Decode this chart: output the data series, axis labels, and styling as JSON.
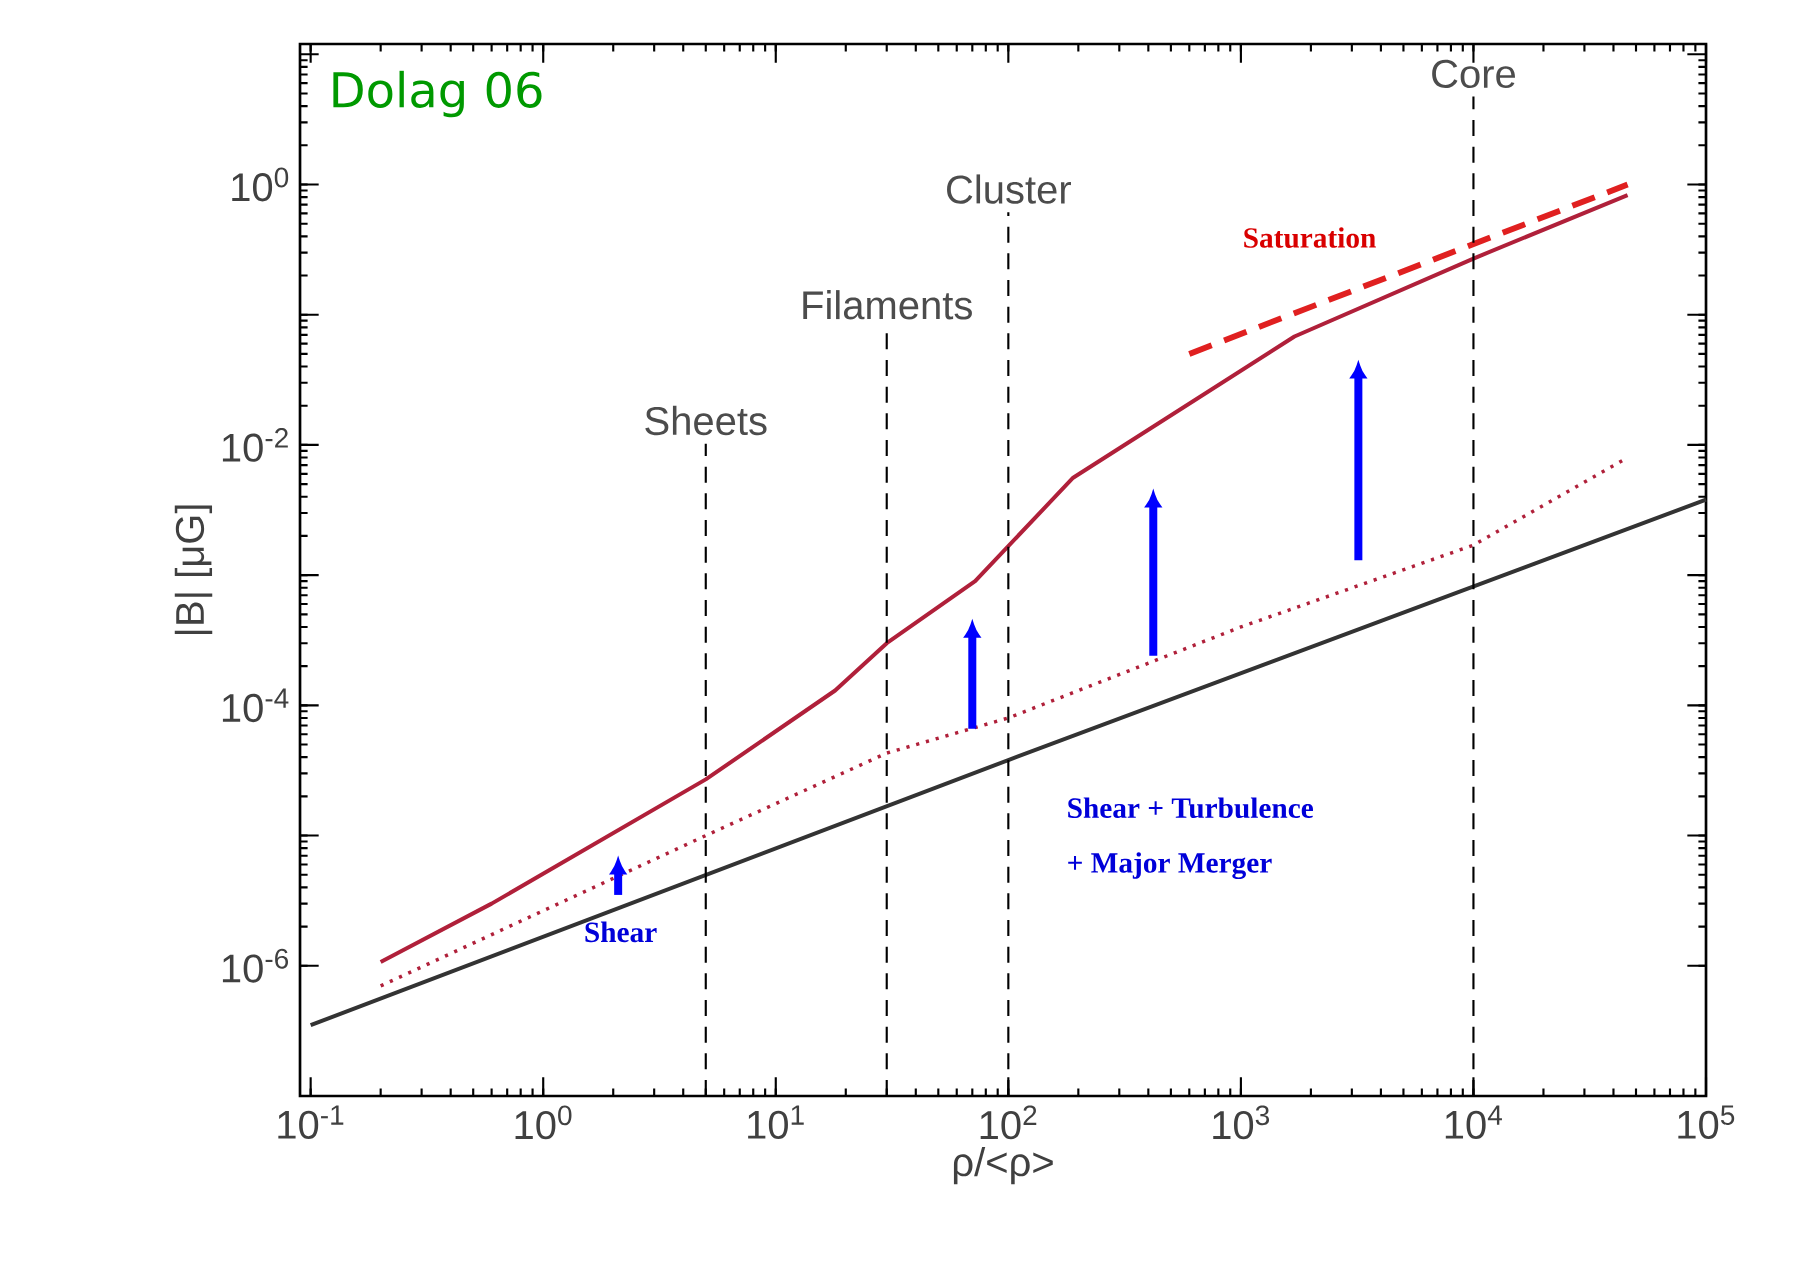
{
  "chart_data": {
    "type": "line",
    "xlabel": "ρ/<ρ>",
    "ylabel": "|B|  [μG]",
    "log": "xy",
    "xlim": [
      0.09,
      100000
    ],
    "ylim": [
      1e-07,
      12
    ],
    "xticks": [
      {
        "value": 0.1,
        "label": "10$^{-1}$"
      },
      {
        "value": 1,
        "label": "10$^{0}$"
      },
      {
        "value": 10,
        "label": "10$^{1}$"
      },
      {
        "value": 100,
        "label": "10$^{2}$"
      },
      {
        "value": 1000,
        "label": "10$^{3}$"
      },
      {
        "value": 10000,
        "label": "10$^{4}$"
      },
      {
        "value": 100000,
        "label": "10$^{5}$"
      }
    ],
    "yticks": [
      {
        "value": 1e-06,
        "label": "10$^{-6}$"
      },
      {
        "value": 1e-05,
        "label": null
      },
      {
        "value": 0.0001,
        "label": "10$^{-4}$"
      },
      {
        "value": 0.001,
        "label": null
      },
      {
        "value": 0.01,
        "label": "10$^{-2}$"
      },
      {
        "value": 0.1,
        "label": null
      },
      {
        "value": 1,
        "label": "10$^{0}$"
      },
      {
        "value": 10,
        "label": null
      }
    ],
    "series": [
      {
        "color": "#333333",
        "line_style": "solid",
        "x": [
          0.1,
          100,
          100000
        ],
        "values": [
          3.5e-07,
          3.8e-05,
          0.0038
        ]
      },
      {
        "color": "#b0203a",
        "line_style": "dotted",
        "x": [
          0.2,
          5,
          30,
          100,
          1000,
          10000,
          46000
        ],
        "values": [
          7e-07,
          1e-05,
          4.3e-05,
          8e-05,
          0.0004,
          0.0017,
          0.008
        ]
      },
      {
        "color": "#b0203a",
        "line_style": "solid",
        "x": [
          0.2,
          0.6,
          5,
          18,
          30,
          72,
          190,
          1700,
          10000,
          46000
        ],
        "values": [
          1.07e-06,
          3e-06,
          2.7e-05,
          0.00013,
          0.0003,
          0.0009,
          0.0056,
          0.068,
          0.27,
          0.83
        ]
      },
      {
        "color": "#e02020",
        "line_style": "dashed",
        "x": [
          600,
          46000
        ],
        "values": [
          0.05,
          1.0
        ]
      }
    ],
    "ref_lines": [
      {
        "axis": "x",
        "value": 5,
        "label": "Sheets",
        "line_style": "dashed",
        "color": "#000000"
      },
      {
        "axis": "x",
        "value": 30,
        "label": "Filaments",
        "line_style": "dashed",
        "color": "#000000"
      },
      {
        "axis": "x",
        "value": 100,
        "label": "Cluster",
        "line_style": "dashed",
        "color": "#000000"
      },
      {
        "axis": "x",
        "value": 10000,
        "label": "Core",
        "line_style": "dashed",
        "color": "#000000"
      }
    ],
    "annotations": [
      "Dolag 06",
      "Saturation",
      "Shear",
      "Shear + Turbulence",
      "+ Major Merger"
    ]
  }
}
